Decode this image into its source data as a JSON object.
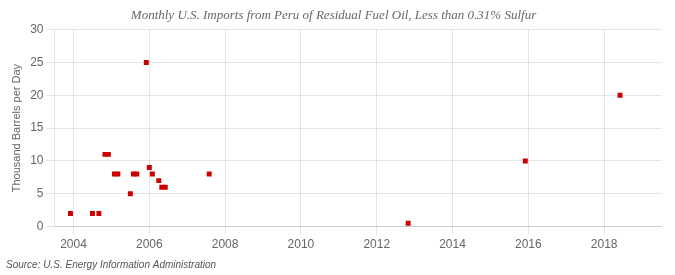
{
  "chart_data": {
    "type": "scatter",
    "title": "Monthly U.S. Imports from Peru of Residual Fuel Oil, Less than 0.31% Sulfur",
    "ylabel": "Thousand Barrels per Day",
    "annotations": [
      "Source: U.S. Energy Information Administration"
    ],
    "x": [
      2003.92,
      2004.5,
      2004.67,
      2004.83,
      2004.92,
      2005.08,
      2005.17,
      2005.5,
      2005.58,
      2005.67,
      2005.92,
      2006.0,
      2006.08,
      2006.25,
      2006.33,
      2006.42,
      2007.58,
      2012.83,
      2015.92,
      2018.42
    ],
    "values": [
      2,
      2,
      2,
      11,
      11,
      8,
      8,
      5,
      8,
      8,
      25,
      9,
      8,
      7,
      6,
      6,
      8,
      0.5,
      10,
      20
    ],
    "color": "#cc0000",
    "marker": "square",
    "xlim": [
      2003.5,
      2019.5
    ],
    "ylim": [
      0,
      30
    ],
    "xticks": [
      2004,
      2006,
      2008,
      2010,
      2012,
      2014,
      2016,
      2018
    ],
    "yticks": [
      0,
      5,
      10,
      15,
      20,
      25,
      30
    ],
    "grid": true
  }
}
